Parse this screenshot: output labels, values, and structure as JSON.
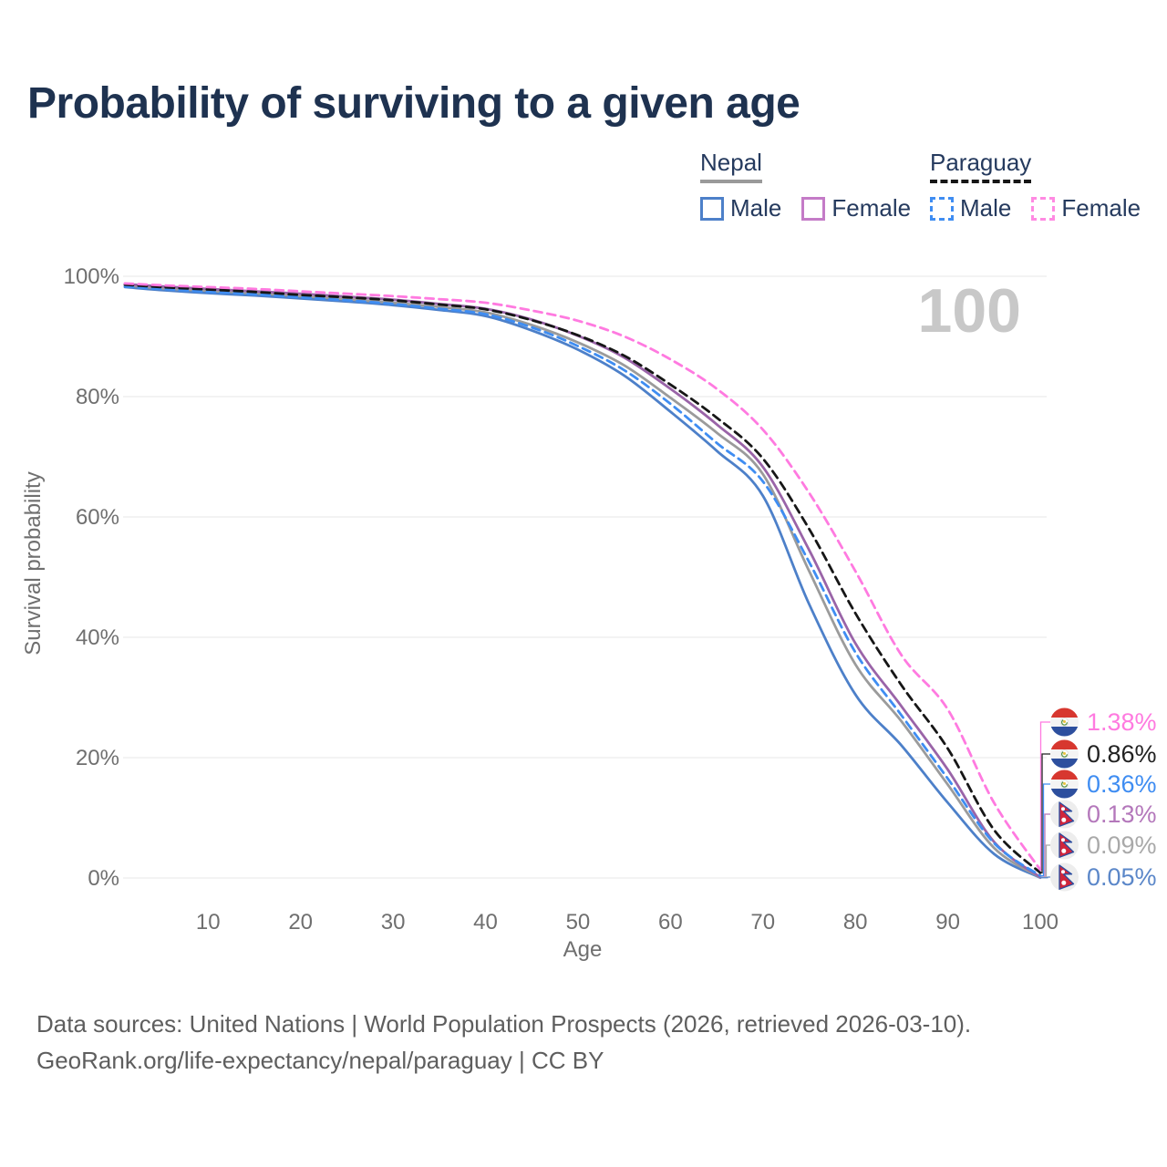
{
  "title": "Probability of surviving to a given age",
  "legend": {
    "groups": [
      {
        "country": "Nepal",
        "underline_style": "solid",
        "underline_color": "#9a9a9a",
        "items": [
          {
            "label": "Male",
            "swatch_color": "#4d80c9",
            "swatch_style": "solid"
          },
          {
            "label": "Female",
            "swatch_color": "#c47bc7",
            "swatch_style": "solid"
          }
        ]
      },
      {
        "country": "Paraguay",
        "underline_style": "dashed",
        "underline_color": "#161616",
        "items": [
          {
            "label": "Male",
            "swatch_color": "#3f8df2",
            "swatch_style": "dashed"
          },
          {
            "label": "Female",
            "swatch_color": "#ff8ae2",
            "swatch_style": "dashed"
          }
        ]
      }
    ]
  },
  "chart_data": {
    "type": "line",
    "title": "Probability of surviving to a given age",
    "xlabel": "Age",
    "ylabel": "Survival probability",
    "xlim": [
      1,
      100
    ],
    "ylim": [
      0,
      100
    ],
    "grid": "horizontal",
    "legend_position": "top-right",
    "hovered_age": "100",
    "x_ticks": [
      10,
      20,
      30,
      40,
      50,
      60,
      70,
      80,
      90,
      100
    ],
    "y_ticks": [
      {
        "label": "100%",
        "value": 100
      },
      {
        "label": "80%",
        "value": 80
      },
      {
        "label": "60%",
        "value": 60
      },
      {
        "label": "40%",
        "value": 40
      },
      {
        "label": "20%",
        "value": 20
      },
      {
        "label": "0%",
        "value": 0
      }
    ],
    "x": [
      1,
      5,
      10,
      15,
      20,
      25,
      30,
      35,
      40,
      45,
      50,
      55,
      60,
      65,
      70,
      75,
      80,
      85,
      90,
      95,
      100
    ],
    "series": [
      {
        "name": "Nepal — Male",
        "country": "Nepal",
        "sex": "Male",
        "style": "solid",
        "color": "#4d80c9",
        "values": [
          98.2,
          97.7,
          97.2,
          96.8,
          96.3,
          95.8,
          95.2,
          94.4,
          93.4,
          91.0,
          87.8,
          83.5,
          77.5,
          71.0,
          63.5,
          45.5,
          30.5,
          22.0,
          12.5,
          4.0,
          0.05
        ]
      },
      {
        "name": "Nepal — Both sexes",
        "country": "Nepal",
        "sex": "Both sexes",
        "style": "solid",
        "color": "#9b9b9b",
        "values": [
          98.5,
          98.0,
          97.6,
          97.2,
          96.7,
          96.2,
          95.6,
          94.9,
          94.0,
          91.9,
          89.0,
          85.2,
          79.8,
          74.0,
          67.1,
          51.0,
          35.5,
          26.0,
          15.5,
          5.0,
          0.09
        ]
      },
      {
        "name": "Nepal — Female",
        "country": "Nepal",
        "sex": "Female",
        "style": "solid",
        "color": "#9a64a8",
        "values": [
          98.7,
          98.3,
          97.9,
          97.5,
          97.1,
          96.6,
          96.1,
          95.4,
          94.6,
          92.8,
          90.1,
          86.5,
          81.3,
          75.4,
          68.3,
          54.5,
          39.0,
          28.5,
          18.0,
          6.0,
          0.13
        ]
      },
      {
        "name": "Paraguay — Male",
        "country": "Paraguay",
        "sex": "Male",
        "style": "dashed",
        "color": "#3f8df2",
        "values": [
          98.3,
          97.9,
          97.4,
          97.0,
          96.5,
          96.0,
          95.4,
          94.6,
          93.7,
          91.5,
          88.4,
          84.4,
          78.8,
          72.3,
          65.9,
          52.5,
          37.5,
          27.0,
          16.5,
          5.8,
          0.36
        ]
      },
      {
        "name": "Paraguay — Both sexes",
        "country": "Paraguay",
        "sex": "Both sexes",
        "style": "dashed",
        "color": "#161616",
        "values": [
          98.6,
          98.2,
          97.8,
          97.4,
          96.9,
          96.5,
          96.0,
          95.3,
          94.5,
          92.7,
          90.2,
          86.8,
          82.0,
          76.5,
          69.7,
          58.0,
          44.0,
          32.0,
          21.5,
          8.0,
          0.86
        ]
      },
      {
        "name": "Paraguay — Female",
        "country": "Paraguay",
        "sex": "Female",
        "style": "dashed",
        "color": "#ff7ae0",
        "values": [
          98.8,
          98.5,
          98.2,
          97.9,
          97.5,
          97.1,
          96.7,
          96.2,
          95.6,
          94.3,
          92.6,
          90.0,
          86.2,
          81.3,
          74.5,
          64.0,
          51.0,
          37.0,
          28.0,
          12.5,
          1.38
        ]
      }
    ],
    "end_labels": [
      {
        "text": "1.38%",
        "flag": "paraguay",
        "color": "#ff7ae0",
        "series": "Paraguay — Female"
      },
      {
        "text": "0.86%",
        "flag": "paraguay",
        "color": "#222222",
        "series": "Paraguay — Both sexes"
      },
      {
        "text": "0.36%",
        "flag": "paraguay",
        "color": "#3f8df2",
        "series": "Paraguay — Male"
      },
      {
        "text": "0.13%",
        "flag": "nepal",
        "color": "#b478bb",
        "series": "Nepal — Female"
      },
      {
        "text": "0.09%",
        "flag": "nepal",
        "color": "#a9a9a9",
        "series": "Nepal — Both sexes"
      },
      {
        "text": "0.05%",
        "flag": "nepal",
        "color": "#5b87c9",
        "series": "Nepal — Male"
      }
    ]
  },
  "footer": {
    "line1": "Data sources: United Nations | World Population Prospects (2026, retrieved 2026-03-10).",
    "line2": "GeoRank.org/life-expectancy/nepal/paraguay | CC BY"
  }
}
